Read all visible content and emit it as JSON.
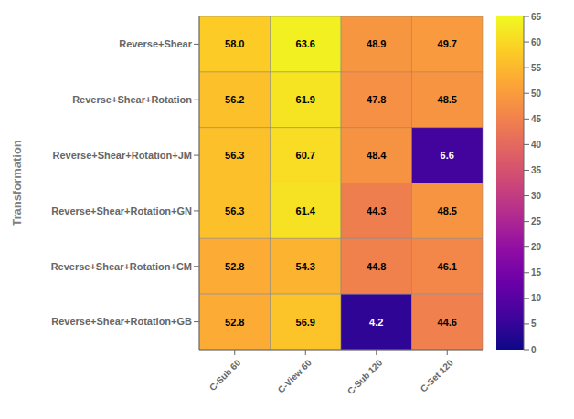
{
  "chart_data": {
    "type": "heatmap",
    "rows": [
      "Reverse+Shear",
      "Reverse+Shear+Rotation",
      "Reverse+Shear+Rotation+JM",
      "Reverse+Shear+Rotation+GN",
      "Reverse+Shear+Rotation+CM",
      "Reverse+Shear+Rotation+GB"
    ],
    "cols": [
      "C-Sub 60",
      "C-View 60",
      "C-Sub 120",
      "C-Set 120"
    ],
    "values": [
      [
        58.0,
        63.6,
        48.9,
        49.7
      ],
      [
        56.2,
        61.9,
        47.8,
        48.5
      ],
      [
        56.3,
        60.7,
        48.4,
        6.6
      ],
      [
        56.3,
        61.4,
        44.3,
        48.5
      ],
      [
        52.8,
        54.3,
        44.8,
        46.1
      ],
      [
        52.8,
        56.9,
        4.2,
        44.6
      ]
    ],
    "value_labels": [
      [
        "58.0",
        "63.6",
        "48.9",
        "49.7"
      ],
      [
        "56.2",
        "61.9",
        "47.8",
        "48.5"
      ],
      [
        "56.3",
        "60.7",
        "48.4",
        "6.6"
      ],
      [
        "56.3",
        "61.4",
        "44.3",
        "48.5"
      ],
      [
        "52.8",
        "54.3",
        "44.8",
        "46.1"
      ],
      [
        "52.8",
        "56.9",
        "4.2",
        "44.6"
      ]
    ],
    "data_labels": true,
    "ylabel": "Transformation",
    "color": "plasma",
    "colorbar": {
      "range": [
        0,
        65
      ],
      "ticks": [
        0,
        5,
        10,
        15,
        20,
        25,
        30,
        35,
        40,
        45,
        50,
        55,
        60,
        65
      ]
    },
    "grid": true
  }
}
